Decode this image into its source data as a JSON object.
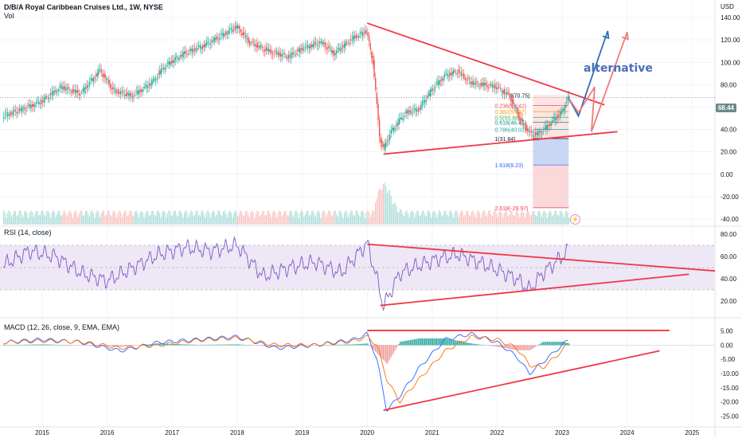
{
  "header": {
    "title": "D/B/A Royal Caribbean Cruises Ltd., 1W, NYSE",
    "volume_label": "Vol",
    "currency": "USD",
    "last_price": "68.44"
  },
  "annotations": {
    "alternative": "alternative",
    "bolt": "⚡"
  },
  "panes": {
    "rsi_label": "RSI (14, close)",
    "macd_label": "MACD (12, 26, close, 9, EMA, EMA)"
  },
  "colors": {
    "up": "#26a69a",
    "down": "#ef5350",
    "trendline": "#f23645",
    "rsi_line": "#7e57c2",
    "rsi_band": "#ede7f6",
    "macd_line": "#2962ff",
    "signal_line": "#ff6d00",
    "alt_up_arrow": "#2f6fb3",
    "alt_red_arrow": "#ef7b7b",
    "fib_red_zone": "#f8c9cc",
    "fib_blue_zone": "#bbcdf2"
  },
  "chart_data": [
    {
      "type": "candlestick",
      "title": "D/B/A Royal Caribbean Cruises Ltd., 1W, NYSE",
      "x_ticks": [
        "2015",
        "2016",
        "2017",
        "2018",
        "2019",
        "2020",
        "2021",
        "2022",
        "2023",
        "2024",
        "2025"
      ],
      "y_ticks": [
        "140.00",
        "120.00",
        "100.00",
        "80.00",
        "60.00",
        "40.00",
        "20.00",
        "0.00",
        "-20.00",
        "-40.00"
      ],
      "ylim": [
        -45,
        150
      ],
      "close_series": {
        "x": [
          2014.4,
          2014.7,
          2015.0,
          2015.3,
          2015.6,
          2015.9,
          2016.1,
          2016.4,
          2016.7,
          2016.9,
          2017.2,
          2017.5,
          2017.8,
          2018.0,
          2018.2,
          2018.5,
          2018.8,
          2019.0,
          2019.3,
          2019.5,
          2019.8,
          2020.0,
          2020.1,
          2020.2,
          2020.25,
          2020.4,
          2020.6,
          2020.8,
          2021.0,
          2021.2,
          2021.4,
          2021.6,
          2021.8,
          2022.0,
          2022.2,
          2022.4,
          2022.55,
          2022.7,
          2022.9,
          2023.0,
          2023.1
        ],
        "values": [
          52,
          58,
          65,
          78,
          72,
          93,
          75,
          70,
          82,
          97,
          108,
          115,
          125,
          132,
          118,
          110,
          105,
          112,
          118,
          108,
          122,
          128,
          100,
          35,
          22,
          40,
          55,
          58,
          75,
          88,
          92,
          82,
          80,
          78,
          70,
          45,
          35,
          38,
          50,
          55,
          68
        ]
      },
      "volume_label": "Vol",
      "last_price": "68.44",
      "trendlines": [
        {
          "from": [
            2020.0,
            135
          ],
          "to": [
            2023.65,
            62
          ]
        },
        {
          "from": [
            2020.25,
            18
          ],
          "to": [
            2023.85,
            38
          ]
        }
      ],
      "fibonacci": [
        {
          "level": "0.236(61.42)"
        },
        {
          "level": "0.382(55.97)"
        },
        {
          "level": "0.5(50.88)"
        },
        {
          "level": "0.618(46.44)"
        },
        {
          "level": "0.786(40.02)"
        },
        {
          "level": "1(31.84)"
        },
        {
          "level": "1.618(8.23)"
        },
        {
          "level": "2.618(-29.97)"
        }
      ],
      "fib_top_label": "0(70.75)",
      "annotation": "alternative"
    },
    {
      "type": "line",
      "name": "RSI (14, close)",
      "y_ticks": [
        "80.00",
        "60.00",
        "40.00",
        "20.00"
      ],
      "ylim": [
        10,
        85
      ],
      "band": [
        30,
        70
      ],
      "x": [
        2014.4,
        2014.8,
        2015.2,
        2015.6,
        2016.0,
        2016.4,
        2016.8,
        2017.2,
        2017.6,
        2018.0,
        2018.4,
        2018.8,
        2019.2,
        2019.6,
        2020.0,
        2020.15,
        2020.25,
        2020.5,
        2020.8,
        2021.1,
        2021.4,
        2021.7,
        2022.0,
        2022.3,
        2022.5,
        2022.7,
        2022.9,
        2023.1
      ],
      "values": [
        52,
        65,
        60,
        45,
        38,
        50,
        62,
        68,
        65,
        70,
        42,
        50,
        55,
        45,
        72,
        40,
        15,
        45,
        52,
        58,
        62,
        55,
        48,
        40,
        30,
        45,
        55,
        65
      ]
    },
    {
      "type": "bar",
      "name": "MACD (12, 26, close, 9, EMA, EMA)",
      "y_ticks": [
        "5.00",
        "0.00",
        "-5.00",
        "-10.00",
        "-15.00",
        "-20.00",
        "-25.00"
      ],
      "ylim": [
        -28,
        8
      ],
      "macd_x": [
        2014.4,
        2015.0,
        2015.6,
        2016.2,
        2016.8,
        2017.4,
        2018.0,
        2018.6,
        2019.2,
        2019.8,
        2020.0,
        2020.15,
        2020.3,
        2020.5,
        2020.8,
        2021.2,
        2021.6,
        2022.0,
        2022.3,
        2022.5,
        2022.7,
        2023.0,
        2023.1
      ],
      "macd": [
        1,
        2,
        1,
        -2,
        1,
        2,
        3,
        -1,
        0,
        2,
        4,
        -5,
        -23,
        -18,
        -8,
        2,
        4,
        1,
        -4,
        -10,
        -6,
        0,
        2
      ],
      "signal": [
        1,
        1.5,
        1.2,
        -1,
        0,
        1.8,
        2.5,
        0,
        0,
        1.5,
        3,
        0,
        -12,
        -20,
        -12,
        -2,
        3,
        2,
        -1,
        -7,
        -8,
        -2,
        1
      ]
    }
  ]
}
